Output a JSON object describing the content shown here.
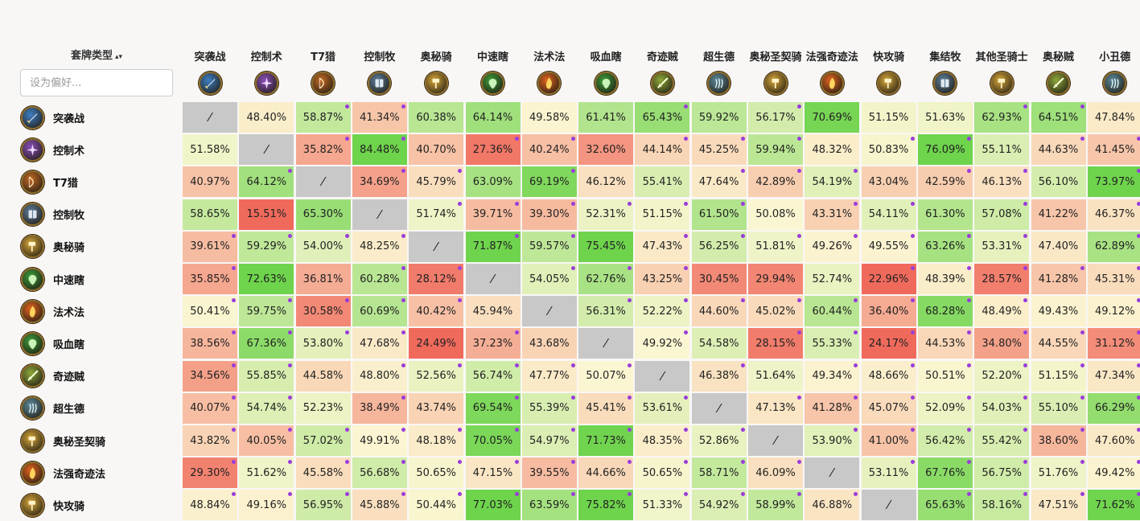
{
  "header": {
    "sort_label": "套牌类型",
    "sort_arrows": "▴▾",
    "search_placeholder": "设为偏好..."
  },
  "decks": [
    {
      "name": "突袭战",
      "icon": "rush-warrior-icon",
      "color": "#3f7fc4",
      "glyph": "sword"
    },
    {
      "name": "控制术",
      "icon": "control-warlock-icon",
      "color": "#8a4fb8",
      "glyph": "star"
    },
    {
      "name": "T7猎",
      "icon": "t7-hunter-icon",
      "color": "#c56a24",
      "glyph": "bow"
    },
    {
      "name": "控制牧",
      "icon": "control-priest-icon",
      "color": "#5d7d99",
      "glyph": "book"
    },
    {
      "name": "奥秘骑",
      "icon": "secret-paladin-icon",
      "color": "#d9a83a",
      "glyph": "hammer"
    },
    {
      "name": "中速瞎",
      "icon": "midrange-dh-icon",
      "color": "#3e9a3a",
      "glyph": "face"
    },
    {
      "name": "法术法",
      "icon": "spell-mage-icon",
      "color": "#e2641f",
      "glyph": "flame"
    },
    {
      "name": "吸血瞎",
      "icon": "lifesteal-dh-icon",
      "color": "#3e9a3a",
      "glyph": "face"
    },
    {
      "name": "奇迹贼",
      "icon": "miracle-rogue-icon",
      "color": "#8ea83a",
      "glyph": "dagger"
    },
    {
      "name": "超生德",
      "icon": "reborn-druid-icon",
      "color": "#5c8a9a",
      "glyph": "claw"
    },
    {
      "name": "奥秘圣契骑",
      "icon": "libram-paladin-icon",
      "color": "#d9a83a",
      "glyph": "hammer"
    },
    {
      "name": "法强奇迹法",
      "icon": "spellpower-mage-icon",
      "color": "#e2641f",
      "glyph": "flame"
    },
    {
      "name": "快攻骑",
      "icon": "aggro-paladin-icon",
      "color": "#d9a83a",
      "glyph": "hammer"
    },
    {
      "name": "集结牧",
      "icon": "rally-priest-icon",
      "color": "#5d7d99",
      "glyph": "book"
    },
    {
      "name": "其他圣骑士",
      "icon": "other-paladin-icon",
      "color": "#d9a83a",
      "glyph": "hammer"
    },
    {
      "name": "奥秘贼",
      "icon": "secret-rogue-icon",
      "color": "#8ea83a",
      "glyph": "dagger"
    },
    {
      "name": "小丑德",
      "icon": "jester-druid-icon",
      "color": "#5c8a9a",
      "glyph": "claw"
    }
  ],
  "self_symbol": "⁄",
  "matrix": [
    [
      null,
      "48.40%",
      "58.87%",
      "41.34%",
      "60.38%",
      "64.14%",
      "49.58%",
      "61.41%",
      "65.43%",
      "59.92%",
      "56.17%",
      "70.69%",
      "51.15%",
      "51.63%",
      "62.93%",
      "64.51%",
      "47.84%"
    ],
    [
      "51.58%",
      null,
      "35.82%",
      "84.48%",
      "40.70%",
      "27.36%",
      "40.24%",
      "32.60%",
      "44.14%",
      "45.25%",
      "59.94%",
      "48.32%",
      "50.83%",
      "76.09%",
      "55.11%",
      "44.63%",
      "41.45%"
    ],
    [
      "40.97%",
      "64.12%",
      null,
      "34.69%",
      "45.79%",
      "63.09%",
      "69.19%",
      "46.12%",
      "55.41%",
      "47.64%",
      "42.89%",
      "54.19%",
      "43.04%",
      "42.59%",
      "46.13%",
      "56.10%",
      "73.97%"
    ],
    [
      "58.65%",
      "15.51%",
      "65.30%",
      null,
      "51.74%",
      "39.71%",
      "39.30%",
      "52.31%",
      "51.15%",
      "61.50%",
      "50.08%",
      "43.31%",
      "54.11%",
      "61.30%",
      "57.08%",
      "41.22%",
      "46.37%"
    ],
    [
      "39.61%",
      "59.29%",
      "54.00%",
      "48.25%",
      null,
      "71.87%",
      "59.57%",
      "75.45%",
      "47.43%",
      "56.25%",
      "51.81%",
      "49.26%",
      "49.55%",
      "63.26%",
      "53.31%",
      "47.40%",
      "62.89%"
    ],
    [
      "35.85%",
      "72.63%",
      "36.81%",
      "60.28%",
      "28.12%",
      null,
      "54.05%",
      "62.76%",
      "43.25%",
      "30.45%",
      "29.94%",
      "52.74%",
      "22.96%",
      "48.39%",
      "28.57%",
      "41.28%",
      "45.31%"
    ],
    [
      "50.41%",
      "59.75%",
      "30.58%",
      "60.69%",
      "40.42%",
      "45.94%",
      null,
      "56.31%",
      "52.22%",
      "44.60%",
      "45.02%",
      "60.44%",
      "36.40%",
      "68.28%",
      "48.49%",
      "49.43%",
      "49.12%"
    ],
    [
      "38.56%",
      "67.36%",
      "53.80%",
      "47.68%",
      "24.49%",
      "37.23%",
      "43.68%",
      null,
      "49.92%",
      "54.58%",
      "28.15%",
      "55.33%",
      "24.17%",
      "44.53%",
      "34.80%",
      "44.55%",
      "31.12%"
    ],
    [
      "34.56%",
      "55.85%",
      "44.58%",
      "48.80%",
      "52.56%",
      "56.74%",
      "47.77%",
      "50.07%",
      null,
      "46.38%",
      "51.64%",
      "49.34%",
      "48.66%",
      "50.51%",
      "52.20%",
      "51.15%",
      "47.34%"
    ],
    [
      "40.07%",
      "54.74%",
      "52.23%",
      "38.49%",
      "43.74%",
      "69.54%",
      "55.39%",
      "45.41%",
      "53.61%",
      null,
      "47.13%",
      "41.28%",
      "45.07%",
      "52.09%",
      "54.03%",
      "55.10%",
      "66.29%"
    ],
    [
      "43.82%",
      "40.05%",
      "57.02%",
      "49.91%",
      "48.18%",
      "70.05%",
      "54.97%",
      "71.73%",
      "48.35%",
      "52.86%",
      null,
      "53.90%",
      "41.00%",
      "56.42%",
      "55.42%",
      "38.60%",
      "47.60%"
    ],
    [
      "29.30%",
      "51.62%",
      "45.58%",
      "56.68%",
      "50.65%",
      "47.15%",
      "39.55%",
      "44.66%",
      "50.65%",
      "58.71%",
      "46.09%",
      null,
      "53.11%",
      "67.76%",
      "56.75%",
      "51.76%",
      "49.42%"
    ],
    [
      "48.84%",
      "49.16%",
      "56.95%",
      "45.88%",
      "50.44%",
      "77.03%",
      "63.59%",
      "75.82%",
      "51.33%",
      "54.92%",
      "58.99%",
      "46.88%",
      null,
      "65.63%",
      "58.16%",
      "47.51%",
      "71.62%"
    ]
  ],
  "dotted_cells": [
    [
      2,
      0
    ],
    [
      3,
      0
    ],
    [
      8,
      0
    ],
    [
      10,
      0
    ],
    [
      14,
      0
    ],
    [
      15,
      0
    ],
    [
      1,
      1
    ],
    [
      2,
      1
    ],
    [
      3,
      1
    ],
    [
      5,
      1
    ],
    [
      6,
      1
    ],
    [
      8,
      1
    ],
    [
      9,
      1
    ],
    [
      10,
      1
    ],
    [
      12,
      1
    ],
    [
      13,
      1
    ],
    [
      15,
      1
    ],
    [
      16,
      1
    ],
    [
      1,
      2
    ],
    [
      3,
      2
    ],
    [
      4,
      2
    ],
    [
      6,
      2
    ],
    [
      9,
      2
    ],
    [
      10,
      2
    ],
    [
      11,
      2
    ],
    [
      13,
      2
    ],
    [
      14,
      2
    ],
    [
      16,
      2
    ],
    [
      4,
      3
    ],
    [
      5,
      3
    ],
    [
      6,
      3
    ],
    [
      7,
      3
    ],
    [
      8,
      3
    ],
    [
      9,
      3
    ],
    [
      11,
      3
    ],
    [
      12,
      3
    ],
    [
      14,
      3
    ],
    [
      16,
      3
    ],
    [
      0,
      4
    ],
    [
      1,
      4
    ],
    [
      2,
      4
    ],
    [
      3,
      4
    ],
    [
      5,
      4
    ],
    [
      6,
      4
    ],
    [
      8,
      4
    ],
    [
      9,
      4
    ],
    [
      10,
      4
    ],
    [
      11,
      4
    ],
    [
      12,
      4
    ],
    [
      13,
      4
    ],
    [
      14,
      4
    ],
    [
      16,
      4
    ],
    [
      0,
      5
    ],
    [
      3,
      5
    ],
    [
      4,
      5
    ],
    [
      6,
      5
    ],
    [
      7,
      5
    ],
    [
      8,
      5
    ],
    [
      12,
      5
    ],
    [
      13,
      5
    ],
    [
      14,
      5
    ],
    [
      15,
      5
    ],
    [
      16,
      5
    ],
    [
      0,
      6
    ],
    [
      1,
      6
    ],
    [
      2,
      6
    ],
    [
      3,
      6
    ],
    [
      4,
      6
    ],
    [
      7,
      6
    ],
    [
      8,
      6
    ],
    [
      9,
      6
    ],
    [
      10,
      6
    ],
    [
      11,
      6
    ],
    [
      12,
      6
    ],
    [
      13,
      6
    ],
    [
      14,
      6
    ],
    [
      16,
      6
    ],
    [
      0,
      7
    ],
    [
      1,
      7
    ],
    [
      2,
      7
    ],
    [
      3,
      7
    ],
    [
      5,
      7
    ],
    [
      8,
      7
    ],
    [
      10,
      7
    ],
    [
      11,
      7
    ],
    [
      12,
      7
    ],
    [
      13,
      7
    ],
    [
      14,
      7
    ],
    [
      15,
      7
    ],
    [
      16,
      7
    ],
    [
      0,
      8
    ],
    [
      1,
      8
    ],
    [
      3,
      8
    ],
    [
      4,
      8
    ],
    [
      5,
      8
    ],
    [
      6,
      8
    ],
    [
      7,
      8
    ],
    [
      9,
      8
    ],
    [
      11,
      8
    ],
    [
      12,
      8
    ],
    [
      13,
      8
    ],
    [
      14,
      8
    ],
    [
      15,
      8
    ],
    [
      16,
      8
    ],
    [
      0,
      9
    ],
    [
      1,
      9
    ],
    [
      3,
      9
    ],
    [
      5,
      9
    ],
    [
      6,
      9
    ],
    [
      7,
      9
    ],
    [
      8,
      9
    ],
    [
      10,
      9
    ],
    [
      11,
      9
    ],
    [
      12,
      9
    ],
    [
      13,
      9
    ],
    [
      14,
      9
    ],
    [
      15,
      9
    ],
    [
      16,
      9
    ],
    [
      0,
      10
    ],
    [
      1,
      10
    ],
    [
      2,
      10
    ],
    [
      3,
      10
    ],
    [
      4,
      10
    ],
    [
      5,
      10
    ],
    [
      6,
      10
    ],
    [
      7,
      10
    ],
    [
      8,
      10
    ],
    [
      9,
      10
    ],
    [
      11,
      10
    ],
    [
      12,
      10
    ],
    [
      13,
      10
    ],
    [
      14,
      10
    ],
    [
      15,
      10
    ],
    [
      16,
      10
    ],
    [
      0,
      11
    ],
    [
      1,
      11
    ],
    [
      2,
      11
    ],
    [
      3,
      11
    ],
    [
      4,
      11
    ],
    [
      5,
      11
    ],
    [
      6,
      11
    ],
    [
      7,
      11
    ],
    [
      8,
      11
    ],
    [
      9,
      11
    ],
    [
      10,
      11
    ],
    [
      12,
      11
    ],
    [
      13,
      11
    ],
    [
      14,
      11
    ],
    [
      15,
      11
    ],
    [
      16,
      11
    ],
    [
      0,
      12
    ],
    [
      1,
      12
    ],
    [
      2,
      12
    ],
    [
      3,
      12
    ],
    [
      4,
      12
    ],
    [
      5,
      12
    ],
    [
      6,
      12
    ],
    [
      7,
      12
    ],
    [
      8,
      12
    ],
    [
      9,
      12
    ],
    [
      10,
      12
    ],
    [
      11,
      12
    ],
    [
      13,
      12
    ],
    [
      14,
      12
    ],
    [
      15,
      12
    ],
    [
      16,
      12
    ]
  ],
  "colors": {
    "self_cell": "#c8c8c8",
    "dot": "#9a3cdc",
    "scale_low": "#f06a5c",
    "scale_mid": "#fbf6d2",
    "scale_high": "#6ed44c"
  }
}
